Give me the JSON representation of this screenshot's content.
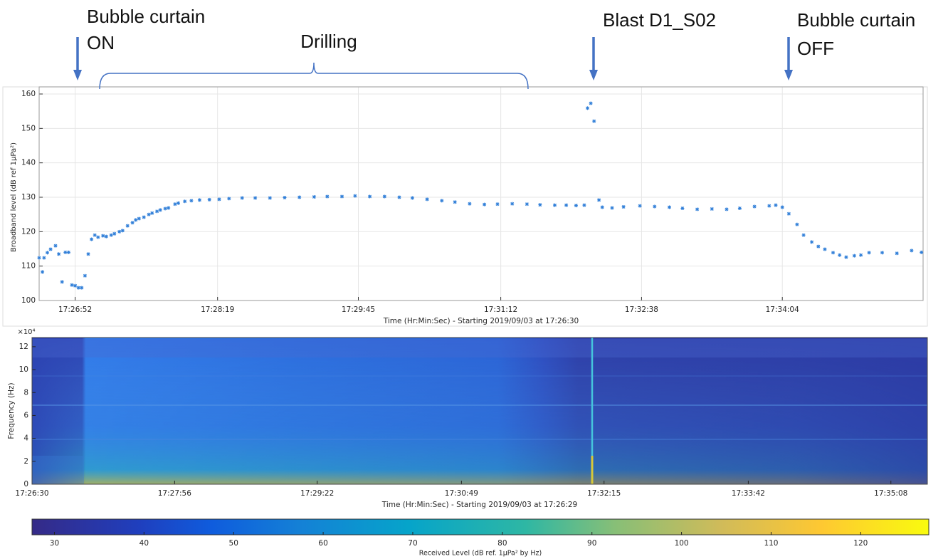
{
  "chart_data": [
    {
      "type": "scatter",
      "y_label": "Broadband level (dB ref 1µPa²)",
      "x_label": "Time (Hr:Min:Sec) - Starting 2019/09/03 at 17:26:30",
      "color": "#2f7ed8",
      "grid": true,
      "xlim": [
        0,
        540
      ],
      "ylim": [
        100,
        160
      ],
      "xticks": [
        {
          "value": 22,
          "label": "17:26:52"
        },
        {
          "value": 109,
          "label": "17:28:19"
        },
        {
          "value": 195,
          "label": "17:29:45"
        },
        {
          "value": 282,
          "label": "17:31:12"
        },
        {
          "value": 368,
          "label": "17:32:38"
        },
        {
          "value": 454,
          "label": "17:34:04"
        }
      ],
      "yticks": [
        100,
        110,
        120,
        130,
        140,
        150,
        160
      ],
      "x": [
        0,
        2,
        3,
        5,
        7,
        10,
        12,
        14,
        16,
        18,
        20,
        22,
        24,
        26,
        28,
        30,
        32,
        34,
        36,
        39,
        41,
        44,
        46,
        49,
        51,
        54,
        57,
        59,
        61,
        64,
        67,
        69,
        72,
        74,
        77,
        79,
        83,
        85,
        89,
        93,
        98,
        104,
        110,
        116,
        124,
        132,
        141,
        150,
        159,
        168,
        176,
        185,
        193,
        202,
        211,
        220,
        228,
        237,
        246,
        254,
        263,
        272,
        280,
        289,
        298,
        306,
        315,
        322,
        328,
        333,
        335,
        337,
        339,
        342,
        344,
        350,
        357,
        367,
        376,
        385,
        393,
        402,
        411,
        420,
        428,
        437,
        446,
        450,
        454,
        458,
        463,
        467,
        472,
        476,
        480,
        485,
        489,
        493,
        498,
        502,
        507,
        515,
        524,
        533,
        539
      ],
      "values": [
        112.4,
        108.3,
        112.4,
        113.9,
        114.9,
        115.9,
        113.5,
        105.4,
        114,
        114,
        104.5,
        104.3,
        103.7,
        103.7,
        107.2,
        113.5,
        117.8,
        119,
        118.4,
        118.8,
        118.6,
        119,
        119.4,
        120,
        120.3,
        121.7,
        122.6,
        123.4,
        123.8,
        124.2,
        125,
        125.4,
        125.9,
        126.3,
        126.7,
        126.9,
        128,
        128.3,
        128.8,
        129,
        129.2,
        129.3,
        129.4,
        129.6,
        129.8,
        129.8,
        129.8,
        129.9,
        130,
        130.1,
        130.2,
        130.2,
        130.4,
        130.2,
        130.2,
        130,
        129.8,
        129.4,
        129,
        128.6,
        128.1,
        127.9,
        128,
        128.1,
        128,
        127.8,
        127.7,
        127.7,
        127.6,
        127.7,
        155.9,
        157.3,
        152.1,
        129.2,
        127.1,
        126.9,
        127.2,
        127.5,
        127.3,
        127.1,
        126.8,
        126.5,
        126.6,
        126.5,
        126.8,
        127.3,
        127.5,
        127.7,
        127.1,
        125.2,
        122.1,
        119,
        117,
        115.7,
        114.9,
        113.9,
        113.2,
        112.6,
        113,
        113.2,
        113.9,
        113.9,
        113.7,
        114.5,
        114
      ],
      "annotations": [
        {
          "lines": [
            "Bubble curtain",
            "ON"
          ]
        },
        {
          "lines": [
            "Drilling"
          ]
        },
        {
          "lines": [
            "Blast D1_S02"
          ]
        },
        {
          "lines": [
            "Bubble curtain",
            "OFF"
          ]
        }
      ]
    },
    {
      "type": "spectrogram",
      "y_label": "Frequency (Hz)",
      "y_exponent": "×10⁴",
      "x_label": "Time (Hr:Min:Sec) - Starting 2019/09/03 at 17:26:29",
      "xlim": [
        0,
        540
      ],
      "ylim": [
        0,
        12.8
      ],
      "xticks": [
        {
          "value": 0,
          "label": "17:26:30"
        },
        {
          "value": 86,
          "label": "17:27:56"
        },
        {
          "value": 172,
          "label": "17:29:22"
        },
        {
          "value": 259,
          "label": "17:30:49"
        },
        {
          "value": 345,
          "label": "17:32:15"
        },
        {
          "value": 432,
          "label": "17:33:42"
        },
        {
          "value": 518,
          "label": "17:35:08"
        }
      ],
      "yticks": [
        0,
        2,
        4,
        6,
        8,
        10,
        12
      ]
    },
    {
      "type": "colorbar",
      "label": "Received Level (dB ref. 1µPa² by Hz)",
      "lim": [
        27.5,
        127.6
      ],
      "ticks": [
        30,
        40,
        50,
        60,
        70,
        80,
        90,
        100,
        110,
        120
      ]
    }
  ]
}
